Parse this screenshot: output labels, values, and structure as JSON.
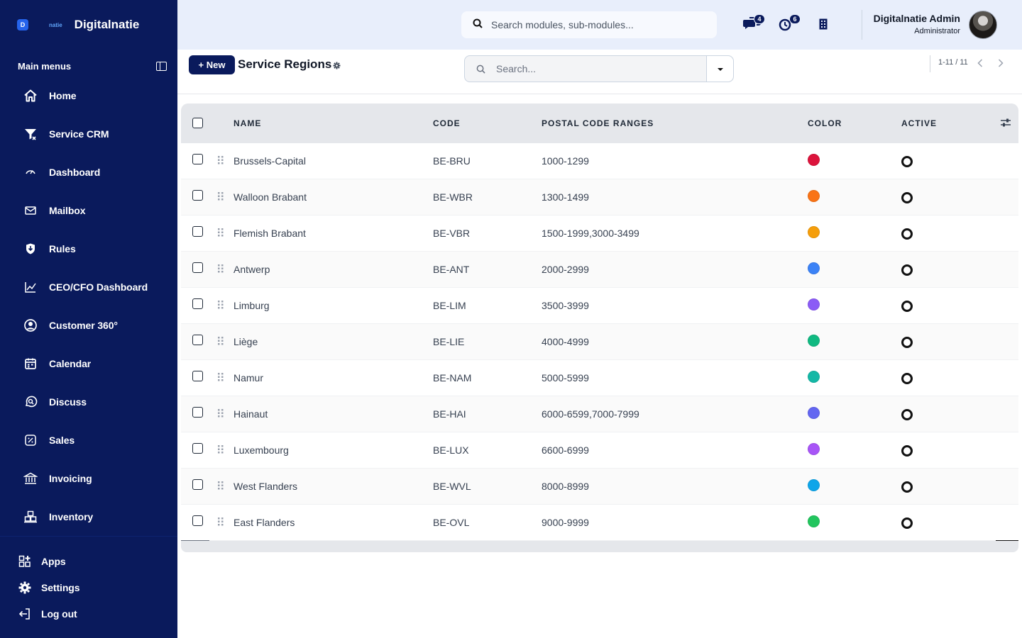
{
  "brand": {
    "logo_letter": "D",
    "small": "natie",
    "name": "Digitalnatie"
  },
  "sidebar": {
    "header": "Main menus",
    "items": [
      {
        "label": "Home",
        "icon": "home-icon"
      },
      {
        "label": "Service CRM",
        "icon": "filter-icon"
      },
      {
        "label": "Dashboard",
        "icon": "gauge-icon"
      },
      {
        "label": "Mailbox",
        "icon": "mail-icon"
      },
      {
        "label": "Rules",
        "icon": "shield-icon"
      },
      {
        "label": "CEO/CFO Dashboard",
        "icon": "chart-line-icon"
      },
      {
        "label": "Customer 360°",
        "icon": "user-circle-icon"
      },
      {
        "label": "Calendar",
        "icon": "calendar-icon"
      },
      {
        "label": "Discuss",
        "icon": "chat-search-icon"
      },
      {
        "label": "Sales",
        "icon": "percent-tag-icon"
      },
      {
        "label": "Invoicing",
        "icon": "bank-icon"
      },
      {
        "label": "Inventory",
        "icon": "boxes-icon"
      }
    ],
    "bottom": [
      {
        "label": "Apps",
        "icon": "apps-icon"
      },
      {
        "label": "Settings",
        "icon": "gear-icon"
      },
      {
        "label": "Log out",
        "icon": "logout-icon"
      }
    ]
  },
  "header": {
    "search_placeholder": "Search modules, sub-modules...",
    "messages_count": "4",
    "activities_count": "6",
    "user_name": "Digitalnatie Admin",
    "user_role": "Administrator"
  },
  "controls": {
    "new_label": "+ New",
    "title": "Service Regions",
    "search_placeholder": "Search...",
    "pager": "1-11 / 11"
  },
  "table": {
    "columns": {
      "name": "NAME",
      "code": "CODE",
      "postal": "POSTAL CODE RANGES",
      "color": "COLOR",
      "active": "ACTIVE"
    },
    "rows": [
      {
        "name": "Brussels-Capital",
        "code": "BE-BRU",
        "postal": "1000-1299",
        "color": "#dc143c"
      },
      {
        "name": "Walloon Brabant",
        "code": "BE-WBR",
        "postal": "1300-1499",
        "color": "#f97316"
      },
      {
        "name": "Flemish Brabant",
        "code": "BE-VBR",
        "postal": "1500-1999,3000-3499",
        "color": "#f59e0b"
      },
      {
        "name": "Antwerp",
        "code": "BE-ANT",
        "postal": "2000-2999",
        "color": "#3b82f6"
      },
      {
        "name": "Limburg",
        "code": "BE-LIM",
        "postal": "3500-3999",
        "color": "#8b5cf6"
      },
      {
        "name": "Liège",
        "code": "BE-LIE",
        "postal": "4000-4999",
        "color": "#10b981"
      },
      {
        "name": "Namur",
        "code": "BE-NAM",
        "postal": "5000-5999",
        "color": "#14b8a6"
      },
      {
        "name": "Hainaut",
        "code": "BE-HAI",
        "postal": "6000-6599,7000-7999",
        "color": "#6366f1"
      },
      {
        "name": "Luxembourg",
        "code": "BE-LUX",
        "postal": "6600-6999",
        "color": "#a855f7"
      },
      {
        "name": "West Flanders",
        "code": "BE-WVL",
        "postal": "8000-8999",
        "color": "#0ea5e9"
      },
      {
        "name": "East Flanders",
        "code": "BE-OVL",
        "postal": "9000-9999",
        "color": "#22c55e"
      }
    ]
  }
}
